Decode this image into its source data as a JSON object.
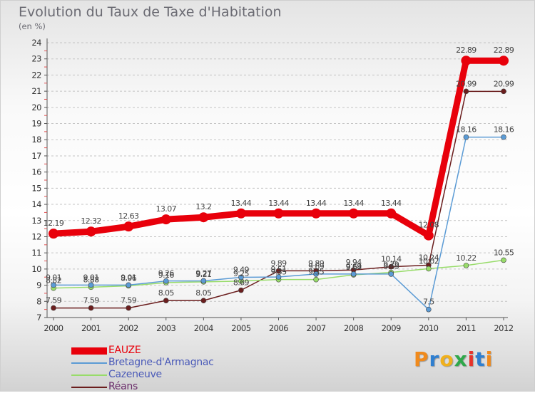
{
  "title": "Evolution du Taux de Taxe d'Habitation",
  "unit_label": "(en %)",
  "logo": {
    "text": "Proxiti",
    "letter_colors": [
      "#f08a1c",
      "#2f7fd0",
      "#f0b01c",
      "#2fa84a",
      "#e8332a",
      "#2f7fd0",
      "#f08a1c"
    ]
  },
  "chart_data": {
    "type": "line",
    "x": [
      "2000",
      "2001",
      "2002",
      "2003",
      "2004",
      "2005",
      "2006",
      "2007",
      "2008",
      "2009",
      "2010",
      "2011",
      "2012"
    ],
    "ylim": [
      7,
      24
    ],
    "yticks": [
      7,
      8,
      9,
      10,
      11,
      12,
      13,
      14,
      15,
      16,
      17,
      18,
      19,
      20,
      21,
      22,
      23,
      24
    ],
    "grid": "horizontal-dashed",
    "legend_position": "bottom-left",
    "series": [
      {
        "name": "EAUZE",
        "color": "#e8000b",
        "values": [
          12.19,
          12.32,
          12.63,
          13.07,
          13.2,
          13.44,
          13.44,
          13.44,
          13.44,
          13.44,
          12.08,
          22.89,
          22.89
        ],
        "labels": [
          "12.19",
          "12.32",
          "12.63",
          "13.07",
          "13.2",
          "13.44",
          "13.44",
          "13.44",
          "13.44",
          "13.44",
          "12.08",
          "22.89",
          "22.89"
        ]
      },
      {
        "name": "Bretagne-d'Armagnac",
        "color": "#5b9bd5",
        "values": [
          9.01,
          9.01,
          9.01,
          9.26,
          9.27,
          9.49,
          9.51,
          9.69,
          9.69,
          9.69,
          7.5,
          18.16,
          18.16
        ],
        "labels": [
          "9.01",
          "9.01",
          "9.01",
          "9.26",
          "9.27",
          "9.49",
          "9.51",
          "9.69",
          "9.69",
          "9.69",
          "7.5",
          "18.16",
          "18.16"
        ]
      },
      {
        "name": "Cazeneuve",
        "color": "#98dc6a",
        "values": [
          8.82,
          8.88,
          8.96,
          9.16,
          9.21,
          9.25,
          9.35,
          9.35,
          9.64,
          9.79,
          10.02,
          10.22,
          10.55
        ],
        "labels": [
          "8.82",
          "8.88",
          "8.96",
          "9.16",
          "9.21",
          "9.25",
          "9.35",
          "9.35",
          "9.64",
          "9.79",
          "10.02",
          "10.22",
          "10.55"
        ]
      },
      {
        "name": "Réans",
        "color": "#6b1e1e",
        "values": [
          7.59,
          7.59,
          7.59,
          8.05,
          8.05,
          8.69,
          9.89,
          9.89,
          9.94,
          10.14,
          10.24,
          20.99,
          20.99
        ],
        "labels": [
          "7.59",
          "7.59",
          "7.59",
          "8.05",
          "8.05",
          "8.69",
          "9.89",
          "9.89",
          "9.94",
          "10.14",
          "10.24",
          "20.99",
          "20.99"
        ]
      }
    ]
  }
}
